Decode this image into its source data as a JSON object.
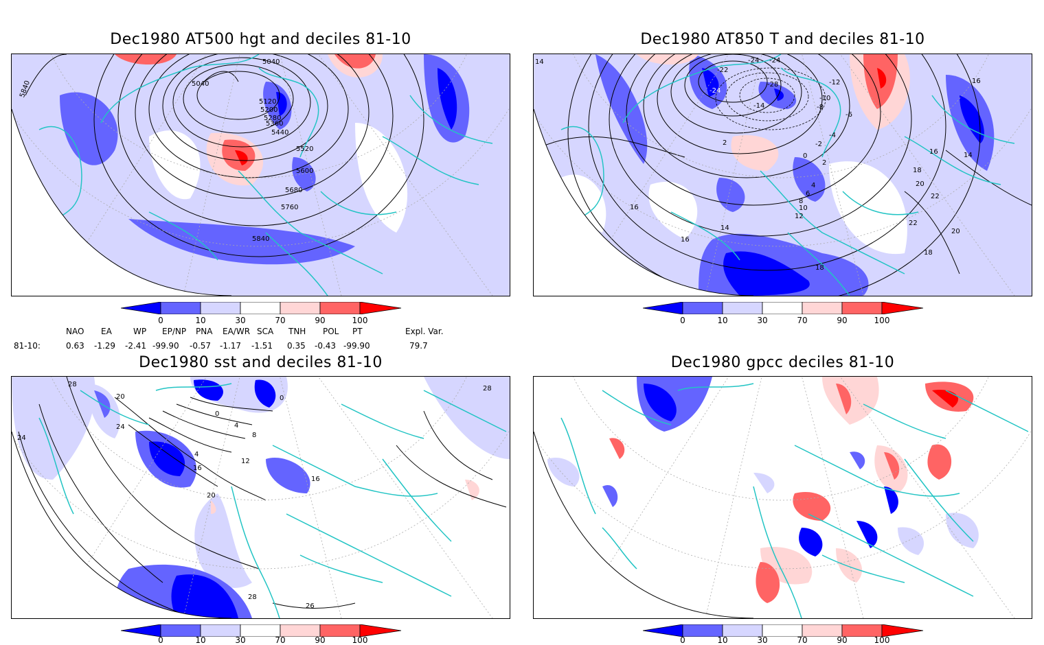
{
  "panels": [
    {
      "title": "Dec1980 AT500 hgt and deciles 81-10",
      "contour_labels": [
        "5040",
        "5040",
        "5120",
        "5200",
        "5280",
        "5360",
        "5440",
        "5520",
        "5600",
        "5680",
        "5760",
        "5840",
        "5840"
      ]
    },
    {
      "title": "Dec1980 AT850 T and deciles 81-10",
      "contour_labels": [
        "-24",
        "-24",
        "-22",
        "-24",
        "-28",
        "-12",
        "-10",
        "-8",
        "-6",
        "-4",
        "-2",
        "-14",
        "2",
        "0",
        "2",
        "4",
        "6",
        "8",
        "10",
        "12",
        "14",
        "16",
        "16",
        "16",
        "18",
        "20",
        "22",
        "22",
        "20",
        "18",
        "18",
        "14",
        "16",
        "14"
      ]
    },
    {
      "title": "Dec1980 sst and deciles 81-10",
      "contour_labels": [
        "28",
        "20",
        "24",
        "24",
        "0",
        "4",
        "8",
        "4",
        "12",
        "16",
        "16",
        "20",
        "26",
        "28",
        "28",
        "0"
      ]
    },
    {
      "title": "Dec1980 gpcc deciles 81-10",
      "contour_labels": []
    }
  ],
  "colorbar": {
    "ticks": [
      "0",
      "10",
      "30",
      "70",
      "90",
      "100"
    ],
    "colors": [
      "#0000ff",
      "#6464ff",
      "#d6d6ff",
      "#ffffff",
      "#ffd6d6",
      "#ff6464",
      "#ff0000"
    ]
  },
  "indices": {
    "headers": [
      "NAO",
      "EA",
      "WP",
      "EP/NP",
      "PNA",
      "EA/WR",
      "SCA",
      "TNH",
      "POL",
      "PT",
      "Expl. Var."
    ],
    "row_label": "81-10:",
    "values": [
      "0.63",
      "-1.29",
      "-2.41",
      "-99.90",
      "-0.57",
      "-1.17",
      "-1.51",
      "0.35",
      "-0.43",
      "-99.90",
      "79.7"
    ]
  },
  "colors": {
    "coast": "#22c4c4",
    "blue_dark": "#0000ff",
    "blue_mid": "#6464ff",
    "blue_light": "#d6d6ff",
    "red_light": "#ffd6d6",
    "red_mid": "#ff6464",
    "red_dark": "#ff0000"
  }
}
